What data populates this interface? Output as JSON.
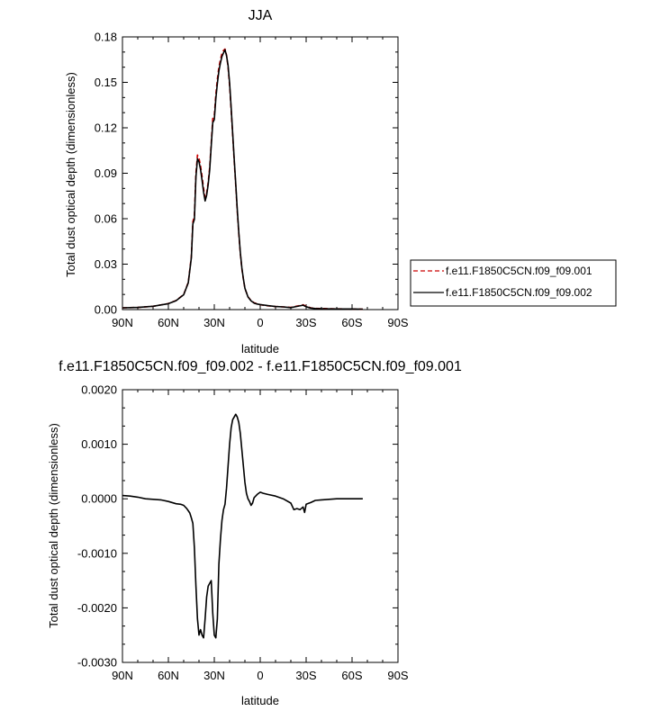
{
  "chart_data": [
    {
      "type": "line",
      "title": "JJA",
      "xlabel": "latitude",
      "ylabel": "Total dust optical depth (dimensionless)",
      "xlim": [
        90,
        -90
      ],
      "ylim": [
        0.0,
        0.18
      ],
      "xticks": [
        90,
        60,
        30,
        0,
        -30,
        -60,
        -90
      ],
      "xticklabels": [
        "90N",
        "60N",
        "30N",
        "0",
        "30S",
        "60S",
        "90S"
      ],
      "yticks": [
        0.0,
        0.03,
        0.06,
        0.09,
        0.12,
        0.15,
        0.18
      ],
      "yticklabels": [
        "0.00",
        "0.03",
        "0.06",
        "0.09",
        "0.12",
        "0.15",
        "0.18"
      ],
      "grid": false,
      "legend": "right",
      "series": [
        {
          "name": "f.e11.F1850C5CN.f09_f09.001",
          "color": "#cc0000",
          "dash": "dashed",
          "x": [
            90,
            80,
            70,
            60,
            55,
            50,
            47,
            45,
            44,
            43,
            42,
            41,
            40,
            39,
            38,
            37,
            36,
            35,
            34,
            33,
            32,
            31,
            30,
            29,
            28,
            27,
            26,
            25,
            24,
            23,
            22,
            21,
            20,
            19,
            18,
            17,
            16,
            15,
            14,
            13,
            12,
            11,
            10,
            8,
            6,
            4,
            2,
            0,
            -5,
            -10,
            -15,
            -20,
            -25,
            -28,
            -30,
            -33,
            -36,
            -40,
            -50,
            -60,
            -67
          ],
          "y": [
            0.0012,
            0.0014,
            0.0022,
            0.004,
            0.006,
            0.01,
            0.018,
            0.035,
            0.058,
            0.062,
            0.09,
            0.102,
            0.1,
            0.095,
            0.088,
            0.08,
            0.074,
            0.077,
            0.084,
            0.094,
            0.11,
            0.126,
            0.128,
            0.142,
            0.152,
            0.16,
            0.165,
            0.169,
            0.171,
            0.172,
            0.168,
            0.16,
            0.148,
            0.132,
            0.115,
            0.098,
            0.082,
            0.065,
            0.05,
            0.037,
            0.027,
            0.02,
            0.014,
            0.0085,
            0.006,
            0.0045,
            0.0038,
            0.0032,
            0.0025,
            0.002,
            0.0018,
            0.0015,
            0.0025,
            0.0032,
            0.0022,
            0.0012,
            0.0008,
            0.0007,
            0.0005,
            0.0004,
            0.0003
          ]
        },
        {
          "name": "f.e11.F1850C5CN.f09_f09.002",
          "color": "#000000",
          "dash": "solid",
          "x": [
            90,
            80,
            70,
            60,
            55,
            50,
            47,
            45,
            44,
            43,
            42,
            41,
            40,
            39,
            38,
            37,
            36,
            35,
            34,
            33,
            32,
            31,
            30,
            29,
            28,
            27,
            26,
            25,
            24,
            23,
            22,
            21,
            20,
            19,
            18,
            17,
            16,
            15,
            14,
            13,
            12,
            11,
            10,
            8,
            6,
            4,
            2,
            0,
            -5,
            -10,
            -15,
            -20,
            -25,
            -28,
            -30,
            -33,
            -36,
            -40,
            -50,
            -60,
            -67
          ],
          "y": [
            0.0012,
            0.0014,
            0.0022,
            0.0039,
            0.0059,
            0.0098,
            0.0177,
            0.0341,
            0.0565,
            0.0596,
            0.0875,
            0.0995,
            0.0976,
            0.0926,
            0.0855,
            0.0775,
            0.0717,
            0.0755,
            0.0825,
            0.0923,
            0.1081,
            0.1234,
            0.1254,
            0.1392,
            0.1493,
            0.1575,
            0.1628,
            0.1671,
            0.1694,
            0.1715,
            0.1676,
            0.1611,
            0.1495,
            0.1335,
            0.1165,
            0.0995,
            0.0833,
            0.0663,
            0.0511,
            0.0378,
            0.0276,
            0.0203,
            0.0141,
            0.0084,
            0.0058,
            0.0043,
            0.0037,
            0.0033,
            0.0026,
            0.002,
            0.0018,
            0.0013,
            0.0023,
            0.0029,
            0.0019,
            0.001,
            0.0007,
            0.0006,
            0.0004,
            0.0004,
            0.0003
          ]
        }
      ]
    },
    {
      "type": "line",
      "title": "f.e11.F1850C5CN.f09_f09.002 - f.e11.F1850C5CN.f09_f09.001",
      "xlabel": "latitude",
      "ylabel": "Total dust optical depth (dimensionless)",
      "xlim": [
        90,
        -90
      ],
      "ylim": [
        -0.003,
        0.002
      ],
      "xticks": [
        90,
        60,
        30,
        0,
        -30,
        -60,
        -90
      ],
      "xticklabels": [
        "90N",
        "60N",
        "30N",
        "0",
        "30S",
        "60S",
        "90S"
      ],
      "yticks": [
        -0.003,
        -0.002,
        -0.001,
        0.0,
        0.001,
        0.002
      ],
      "yticklabels": [
        "-0.0030",
        "-0.0020",
        "-0.0010",
        "0.0000",
        "0.0010",
        "0.0020"
      ],
      "grid": false,
      "series": [
        {
          "color": "#000000",
          "dash": "solid",
          "x": [
            90,
            85,
            80,
            75,
            70,
            65,
            60,
            55,
            52,
            50,
            48,
            47,
            46,
            45,
            44,
            43,
            42,
            41,
            40,
            39,
            38,
            37,
            36,
            35,
            34,
            33,
            32,
            31,
            30,
            29,
            28,
            27,
            26,
            25,
            24,
            23,
            22,
            21,
            20,
            19,
            18,
            17,
            16,
            15,
            14,
            13,
            12,
            11,
            10,
            9,
            8,
            7,
            6,
            5,
            4,
            2,
            0,
            -2,
            -5,
            -10,
            -15,
            -20,
            -22,
            -24,
            -26,
            -28,
            -29,
            -30,
            -33,
            -36,
            -40,
            -45,
            -50,
            -55,
            -60,
            -67
          ],
          "y": [
            6e-05,
            5e-05,
            3e-05,
            0.0,
            -1e-05,
            -2e-05,
            -5e-05,
            -9e-05,
            -0.0001,
            -0.00012,
            -0.00018,
            -0.00022,
            -0.00026,
            -0.00035,
            -0.00045,
            -0.0009,
            -0.0016,
            -0.0022,
            -0.0025,
            -0.0024,
            -0.0025,
            -0.00255,
            -0.0022,
            -0.0018,
            -0.0016,
            -0.00155,
            -0.0015,
            -0.0021,
            -0.0025,
            -0.00255,
            -0.0022,
            -0.0012,
            -0.00075,
            -0.0004,
            -0.0002,
            -0.0001,
            0.0002,
            0.0006,
            0.001,
            0.0013,
            0.00145,
            0.0015,
            0.00155,
            0.0015,
            0.0014,
            0.0012,
            0.0009,
            0.0006,
            0.0003,
            0.0001,
            0.0,
            -5e-05,
            -0.00012,
            -8e-05,
            2e-05,
            8e-05,
            0.00012,
            0.0001,
            8e-05,
            5e-05,
            0.0,
            -8e-05,
            -0.0002,
            -0.00018,
            -0.0002,
            -0.00015,
            -0.00025,
            -0.0001,
            -7e-05,
            -3e-05,
            -2e-05,
            -1e-05,
            0.0,
            0.0,
            0.0,
            0.0
          ]
        }
      ]
    }
  ]
}
